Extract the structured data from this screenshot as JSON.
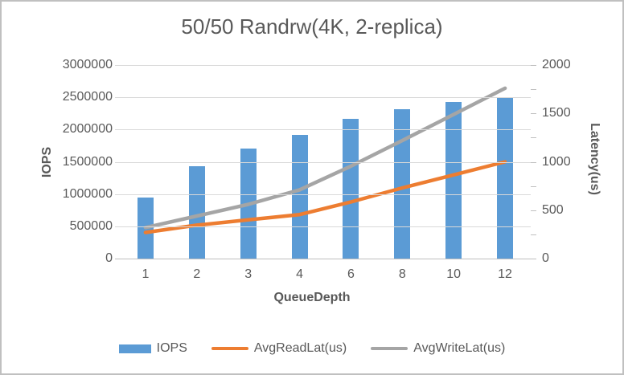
{
  "chart_data": {
    "type": "bar",
    "subtype": "combo-bar-line-dual-axis",
    "title": "50/50 Randrw(4K, 2-replica)",
    "categories": [
      "1",
      "2",
      "3",
      "4",
      "6",
      "8",
      "10",
      "12"
    ],
    "xlabel": "QueueDepth",
    "grid": true,
    "legend_position": "bottom",
    "left_axis": {
      "label": "IOPS",
      "min": 0,
      "max": 3000000,
      "major_unit": 500000,
      "tick_labels": [
        "0",
        "500000",
        "1000000",
        "1500000",
        "2000000",
        "2500000",
        "3000000"
      ]
    },
    "right_axis": {
      "label": "Latency(us)",
      "min": 0,
      "max": 2000,
      "major_unit": 500,
      "minor_unit": 250,
      "tick_labels": [
        "0",
        "500",
        "1000",
        "1500",
        "2000"
      ]
    },
    "series": [
      {
        "name": "IOPS",
        "type": "bar",
        "axis": "left",
        "color": "#5b9bd5",
        "values": [
          950000,
          1430000,
          1710000,
          1920000,
          2160000,
          2320000,
          2430000,
          2490000
        ]
      },
      {
        "name": "AvgReadLat(us)",
        "type": "line",
        "axis": "right",
        "color": "#ed7d31",
        "values": [
          270,
          345,
          400,
          455,
          585,
          730,
          865,
          1000
        ]
      },
      {
        "name": "AvgWriteLat(us)",
        "type": "line",
        "axis": "right",
        "color": "#a5a5a5",
        "values": [
          320,
          440,
          560,
          710,
          955,
          1220,
          1490,
          1760
        ]
      }
    ]
  },
  "colors": {
    "bar_blue": "#5b9bd5",
    "line_orange": "#ed7d31",
    "line_gray": "#a5a5a5",
    "text_gray": "#595959",
    "gridline": "#d9d9d9",
    "axis_line": "#bfbfbf",
    "frame_border": "#c0c0c0",
    "background": "#ffffff"
  }
}
